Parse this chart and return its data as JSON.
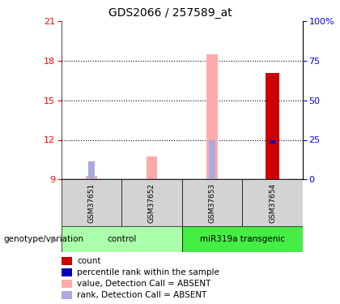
{
  "title": "GDS2066 / 257589_at",
  "samples": [
    "GSM37651",
    "GSM37652",
    "GSM37653",
    "GSM37654"
  ],
  "ylim_left": [
    9,
    21
  ],
  "ylim_right": [
    0,
    100
  ],
  "yticks_left": [
    9,
    12,
    15,
    18,
    21
  ],
  "yticks_right": [
    0,
    25,
    50,
    75,
    100
  ],
  "ytick_labels_right": [
    "0",
    "25",
    "50",
    "75",
    "100%"
  ],
  "bar_data": [
    {
      "sample": "GSM37651",
      "value_absent": 9.25,
      "rank_absent": 10.35,
      "count": null,
      "rank_present": null
    },
    {
      "sample": "GSM37652",
      "value_absent": 10.75,
      "rank_absent": null,
      "count": null,
      "rank_present": null
    },
    {
      "sample": "GSM37653",
      "value_absent": 18.5,
      "rank_absent": 12.0,
      "count": null,
      "rank_present": null
    },
    {
      "sample": "GSM37654",
      "value_absent": null,
      "rank_absent": 11.85,
      "count": 17.1,
      "rank_present": 11.85
    }
  ],
  "groups": [
    {
      "label": "control",
      "n_samples": 2,
      "color": "#aaffaa"
    },
    {
      "label": "miR319a transgenic",
      "n_samples": 2,
      "color": "#44ee44"
    }
  ],
  "color_count": "#cc0000",
  "color_rank_present": "#0000bb",
  "color_value_absent": "#ffaaaa",
  "color_rank_absent": "#aaaadd",
  "sample_box_color": "#d3d3d3",
  "annotation_label": "genotype/variation",
  "legend_items": [
    {
      "color": "#cc0000",
      "label": "count"
    },
    {
      "color": "#0000bb",
      "label": "percentile rank within the sample"
    },
    {
      "color": "#ffaaaa",
      "label": "value, Detection Call = ABSENT"
    },
    {
      "color": "#aaaadd",
      "label": "rank, Detection Call = ABSENT"
    }
  ]
}
